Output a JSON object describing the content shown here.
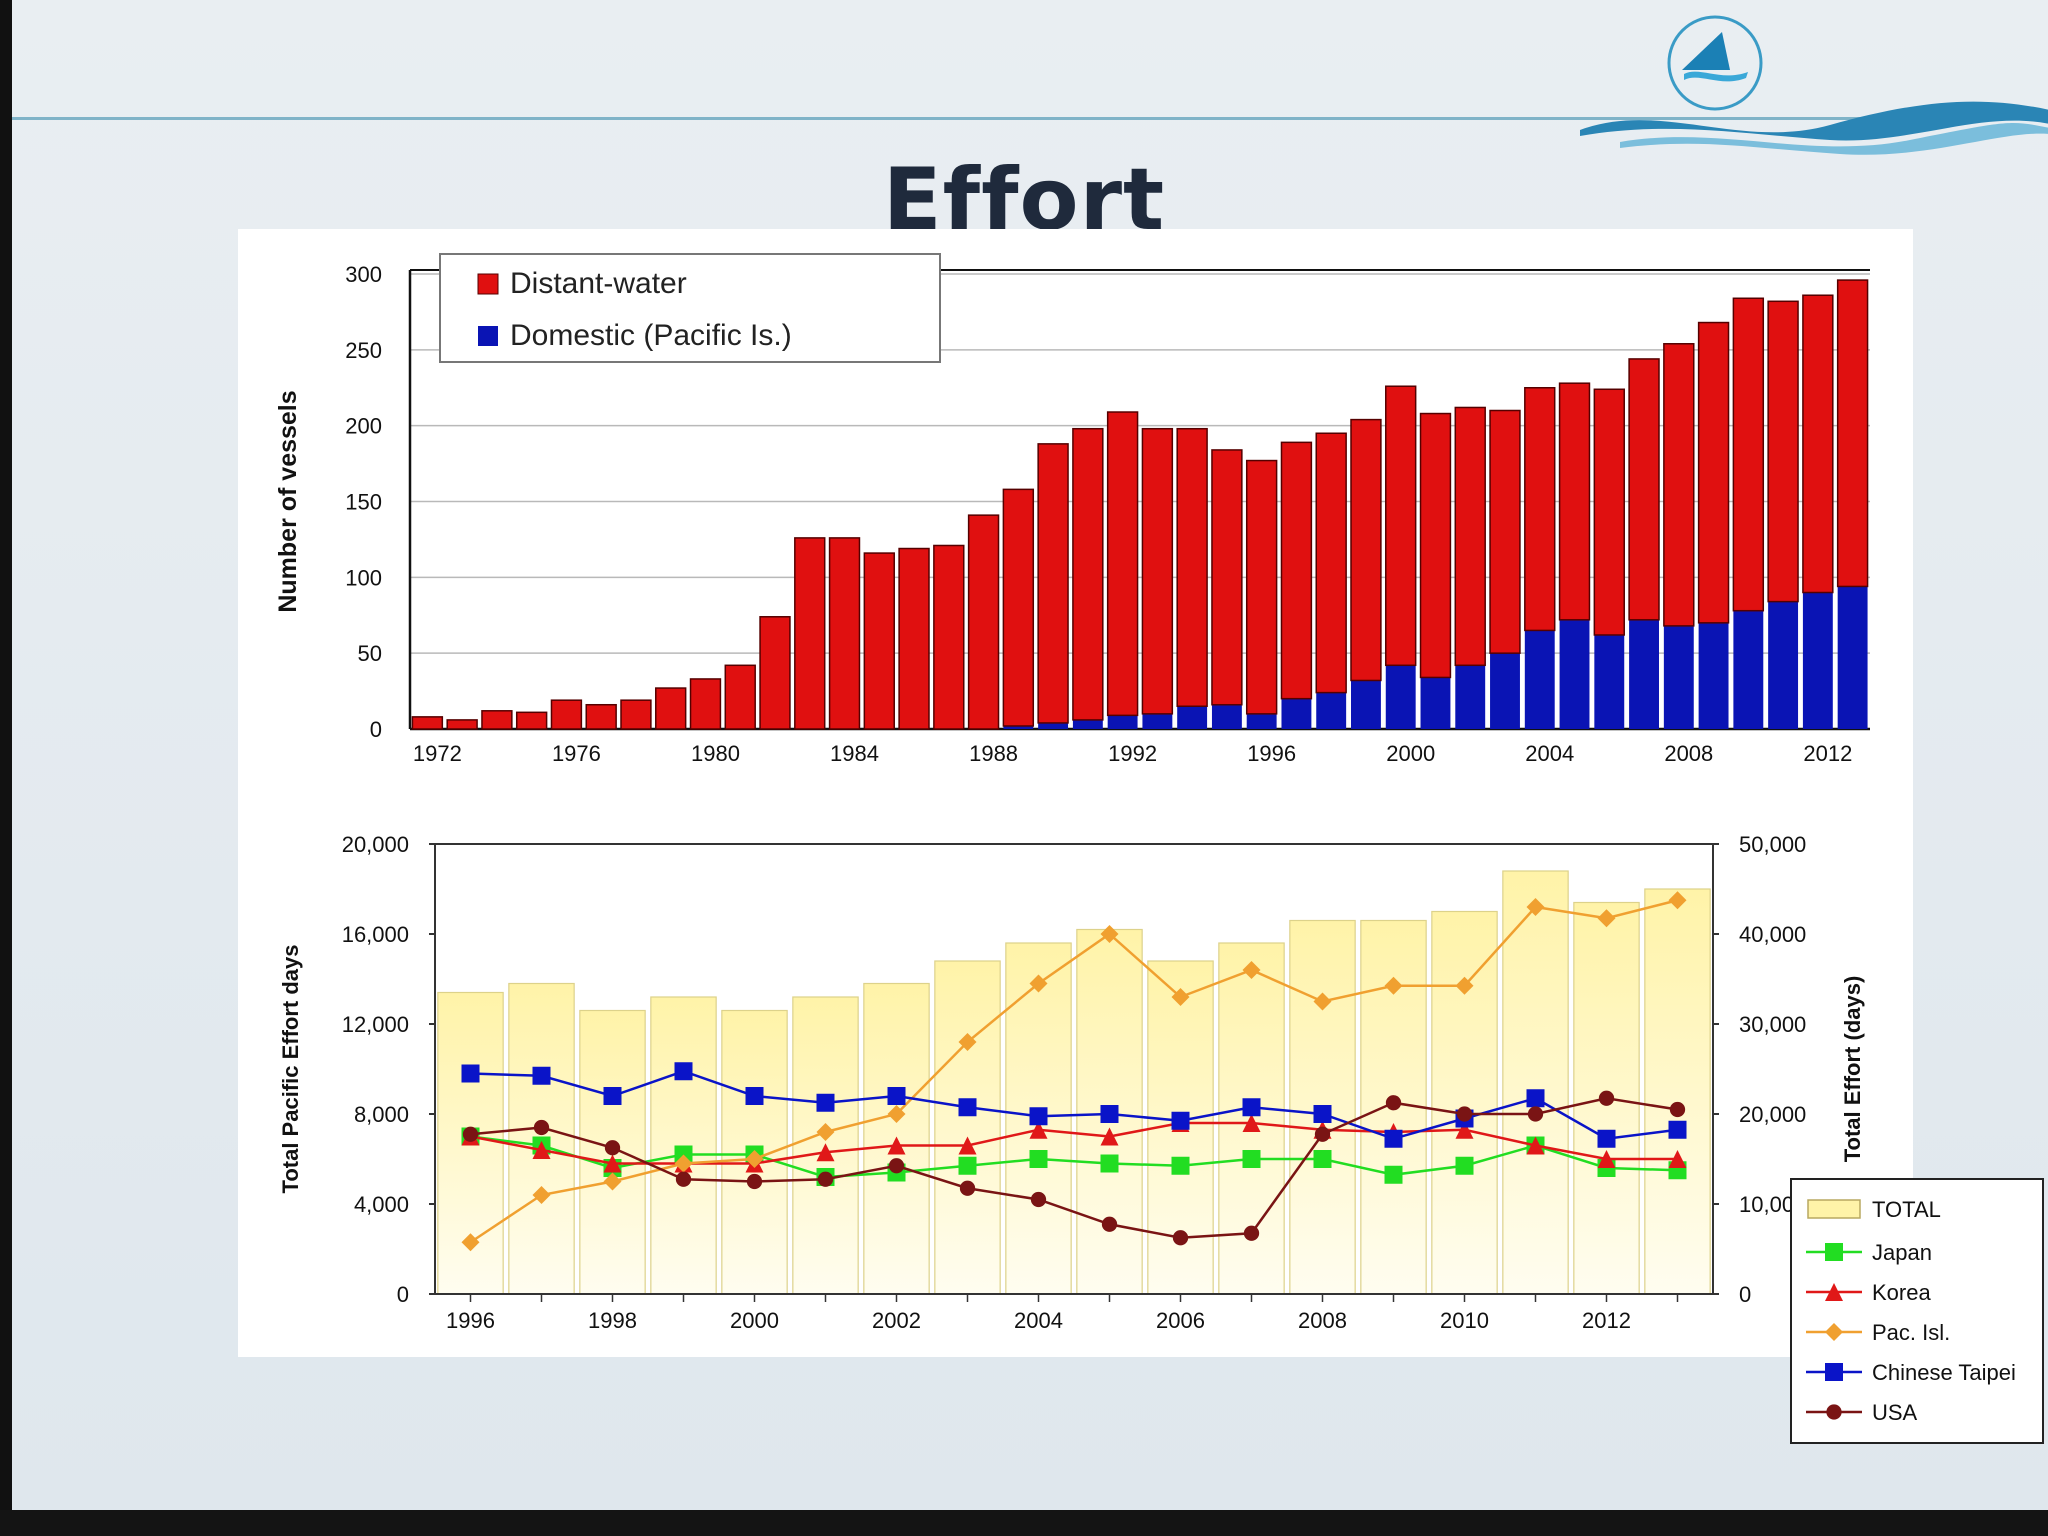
{
  "slide": {
    "title": "Effort"
  },
  "chart_data": [
    {
      "type": "bar",
      "stacked": true,
      "ylabel": "Number of vessels",
      "ylim": [
        0,
        300
      ],
      "yticks": [
        0,
        50,
        100,
        150,
        200,
        250,
        300
      ],
      "xtick_labels": [
        "1972",
        "1976",
        "1980",
        "1984",
        "1988",
        "1992",
        "1996",
        "2000",
        "2004",
        "2008",
        "2012"
      ],
      "grid": true,
      "legend_position": "top-left",
      "categories": [
        1972,
        1973,
        1974,
        1975,
        1976,
        1977,
        1978,
        1979,
        1980,
        1981,
        1982,
        1983,
        1984,
        1985,
        1986,
        1987,
        1988,
        1989,
        1990,
        1991,
        1992,
        1993,
        1994,
        1995,
        1996,
        1997,
        1998,
        1999,
        2000,
        2001,
        2002,
        2003,
        2004,
        2005,
        2006,
        2007,
        2008,
        2009,
        2010,
        2011,
        2012,
        2013
      ],
      "series": [
        {
          "name": "Domestic (Pacific Is.)",
          "color": "#0a14b4",
          "values": [
            0,
            0,
            0,
            0,
            0,
            0,
            0,
            0,
            0,
            0,
            0,
            0,
            0,
            0,
            0,
            0,
            0,
            2,
            4,
            6,
            9,
            10,
            15,
            16,
            10,
            20,
            24,
            32,
            42,
            34,
            42,
            50,
            65,
            72,
            62,
            72,
            68,
            70,
            78,
            84,
            90,
            94
          ]
        },
        {
          "name": "Distant-water",
          "color": "#e01010",
          "values": [
            8,
            6,
            12,
            11,
            19,
            16,
            19,
            27,
            33,
            42,
            74,
            126,
            126,
            116,
            119,
            121,
            141,
            156,
            184,
            192,
            200,
            188,
            183,
            168,
            167,
            169,
            171,
            172,
            184,
            174,
            170,
            160,
            160,
            156,
            162,
            172,
            186,
            198,
            206,
            198,
            196,
            202
          ]
        }
      ]
    },
    {
      "type": "bar+line",
      "ylabel_left": "Total Pacific Effort days",
      "ylabel_right": "Total Effort (days)",
      "ylim_left": [
        0,
        20000
      ],
      "ylim_right": [
        0,
        50000
      ],
      "yticks_left": [
        "0",
        "4,000",
        "8,000",
        "12,000",
        "16,000",
        "20,000"
      ],
      "yticks_right": [
        "0",
        "10,000",
        "20,000",
        "30,000",
        "40,000",
        "50,000"
      ],
      "xtick_labels": [
        "1996",
        "1998",
        "2000",
        "2002",
        "2004",
        "2006",
        "2008",
        "2010",
        "2012"
      ],
      "legend_position": "right",
      "categories": [
        1996,
        1997,
        1998,
        1999,
        2000,
        2001,
        2002,
        2003,
        2004,
        2005,
        2006,
        2007,
        2008,
        2009,
        2010,
        2011,
        2012,
        2013
      ],
      "bar_series": {
        "name": "TOTAL",
        "axis": "right",
        "color": "#fff2b0",
        "values": [
          33500,
          34500,
          31500,
          33000,
          31500,
          33000,
          34500,
          37000,
          39000,
          40500,
          37000,
          39000,
          41500,
          41500,
          42500,
          47000,
          43500,
          45000
        ]
      },
      "series": [
        {
          "name": "Japan",
          "color": "#22dd22",
          "marker": "square",
          "values": [
            7000,
            6600,
            5600,
            6200,
            6200,
            5200,
            5400,
            5700,
            6000,
            5800,
            5700,
            6000,
            6000,
            5300,
            5700,
            6600,
            5600,
            5500
          ]
        },
        {
          "name": "Korea",
          "color": "#e01818",
          "marker": "triangle",
          "values": [
            7000,
            6400,
            5800,
            5800,
            5800,
            6300,
            6600,
            6600,
            7300,
            7000,
            7600,
            7600,
            7300,
            7200,
            7300,
            6600,
            6000,
            6000
          ]
        },
        {
          "name": "Pac. Isl.",
          "color": "#f0a030",
          "marker": "diamond",
          "values": [
            2300,
            4400,
            5000,
            5800,
            6000,
            7200,
            8000,
            11200,
            13800,
            16000,
            13200,
            14400,
            13000,
            13700,
            13700,
            17200,
            16700,
            17500
          ]
        },
        {
          "name": "Chinese Taipei",
          "color": "#0a14c8",
          "marker": "square",
          "values": [
            9800,
            9700,
            8800,
            9900,
            8800,
            8500,
            8800,
            8300,
            7900,
            8000,
            7700,
            8300,
            8000,
            6900,
            7800,
            8700,
            6900,
            7300
          ]
        },
        {
          "name": "USA",
          "color": "#7a1414",
          "marker": "circle",
          "values": [
            7100,
            7400,
            6500,
            5100,
            5000,
            5100,
            5700,
            4700,
            4200,
            3100,
            2500,
            2700,
            7100,
            8500,
            8000,
            8000,
            8700,
            8200
          ]
        }
      ]
    }
  ]
}
